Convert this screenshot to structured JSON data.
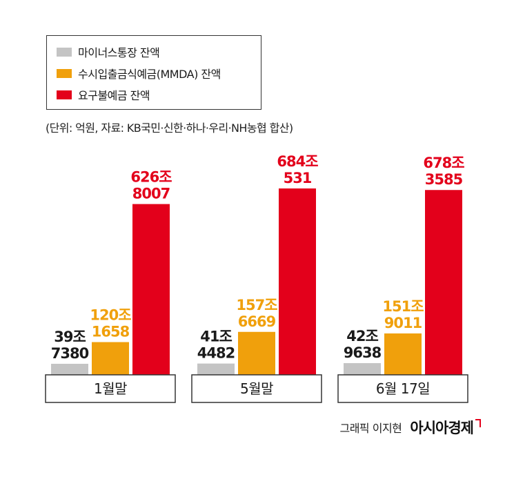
{
  "legend": [
    {
      "label": "마이너스통장 잔액",
      "color": "#c4c4c4"
    },
    {
      "label": "수시입출금식예금(MMDA) 잔액",
      "color": "#f0a00c"
    },
    {
      "label": "요구불예금 잔액",
      "color": "#e3001b"
    }
  ],
  "unit_note": "(단위: 억원, 자료: KB국민·신한·하나·우리·NH농협 합산)",
  "credit": {
    "text": "그래픽 이지현",
    "brand": "아시아경제"
  },
  "chart_data": {
    "type": "bar",
    "categories": [
      "1월말",
      "5월말",
      "6월 17일"
    ],
    "series": [
      {
        "name": "마이너스통장 잔액",
        "color": "#c4c4c4",
        "values": [
          397380,
          414482,
          429638
        ],
        "labels": [
          [
            "39조",
            "7380"
          ],
          [
            "41조",
            "4482"
          ],
          [
            "42조",
            "9638"
          ]
        ],
        "label_color": "#1a1a1a"
      },
      {
        "name": "수시입출금식예금(MMDA) 잔액",
        "color": "#f0a00c",
        "values": [
          1201658,
          1576669,
          1519011
        ],
        "labels": [
          [
            "120조",
            "1658"
          ],
          [
            "157조",
            "6669"
          ],
          [
            "151조",
            "9011"
          ]
        ],
        "label_color": "#f0a00c"
      },
      {
        "name": "요구불예금 잔액",
        "color": "#e3001b",
        "values": [
          6268007,
          6840531,
          6783585
        ],
        "labels": [
          [
            "626조",
            "8007"
          ],
          [
            "684조",
            "531"
          ],
          [
            "678조",
            "3585"
          ]
        ],
        "label_color": "#e3001b"
      }
    ],
    "unit": "억원"
  }
}
